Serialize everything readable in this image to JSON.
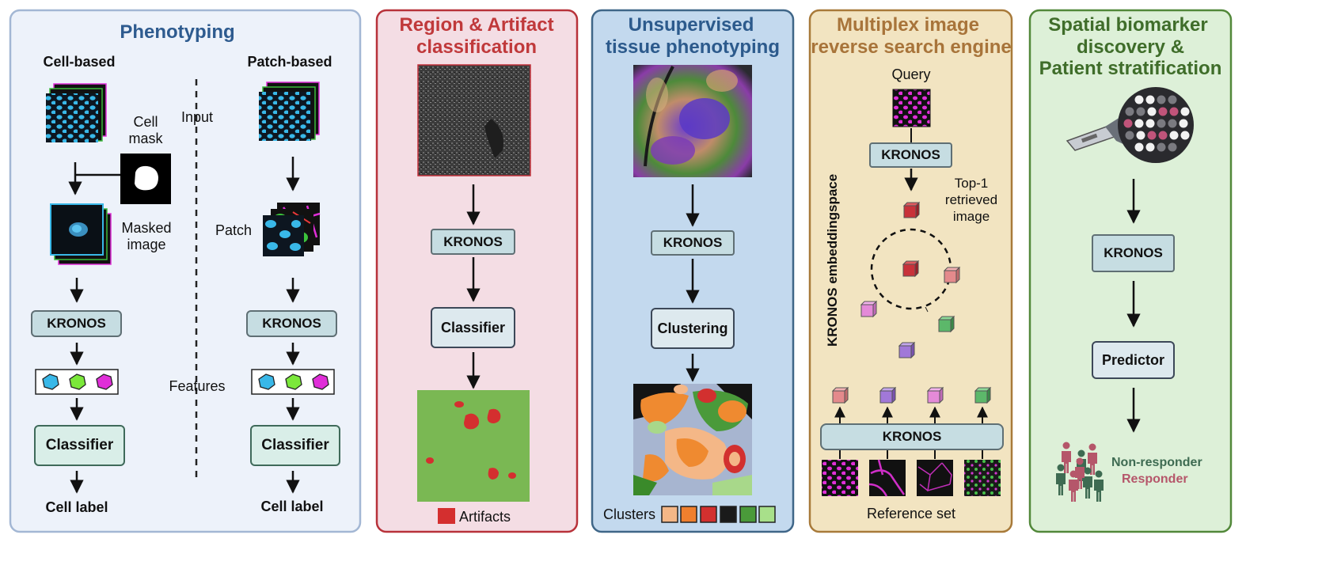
{
  "panels": {
    "phenotyping": {
      "title": "Phenotyping",
      "cell_based": "Cell-based",
      "patch_based": "Patch-based",
      "cell_mask": [
        "Cell",
        "mask"
      ],
      "masked_image": [
        "Masked",
        "image"
      ],
      "patch": "Patch",
      "input": "Input",
      "features": "Features",
      "kronos": "KRONOS",
      "classifier": "Classifier",
      "cell_label": "Cell label"
    },
    "region": {
      "title": [
        "Region & Artifact",
        "classification"
      ],
      "kronos": "KRONOS",
      "classifier": "Classifier",
      "legend": "Artifacts"
    },
    "unsupervised": {
      "title": [
        "Unsupervised",
        "tissue phenotyping"
      ],
      "kronos": "KRONOS",
      "clustering": "Clustering",
      "legend": "Clusters"
    },
    "search": {
      "title": [
        "Multiplex image",
        "reverse search engine"
      ],
      "query": "Query",
      "kronos": "KRONOS",
      "top1": [
        "Top-1",
        "retrieved",
        "image"
      ],
      "embedding": "KRONOS embeddingspace",
      "kronos_bottom": "KRONOS",
      "reference": "Reference set"
    },
    "biomarker": {
      "title": [
        "Spatial biomarker",
        "discovery &",
        "Patient stratification"
      ],
      "kronos": "KRONOS",
      "predictor": "Predictor",
      "non_responder": "Non-responder",
      "responder": "Responder"
    }
  },
  "colors": {
    "phenotyping_title": "#2e5b8f",
    "region_title": "#c0393b",
    "unsupervised_title": "#2c5a8c",
    "search_title": "#a8743a",
    "biomarker_title": "#3f6d2a",
    "non_responder": "#3e6b52",
    "responder": "#b5566a"
  }
}
